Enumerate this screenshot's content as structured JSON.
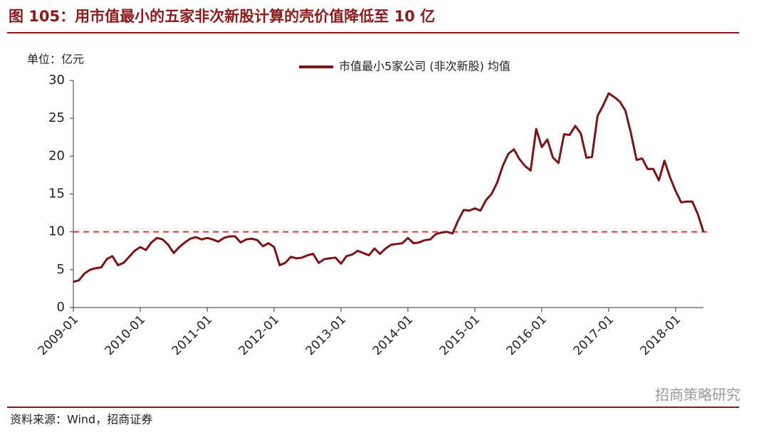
{
  "chart_data": {
    "type": "line",
    "title": "图 105：用市值最小的五家非次新股计算的壳价值降低至 10 亿",
    "y_unit_label": "单位：亿元",
    "source": "资料来源：Wind，招商证券",
    "watermark": "招商策略研究",
    "x": [
      "2009-01",
      "2009-02",
      "2009-03",
      "2009-04",
      "2009-05",
      "2009-06",
      "2009-07",
      "2009-08",
      "2009-09",
      "2009-10",
      "2009-11",
      "2009-12",
      "2010-01",
      "2010-02",
      "2010-03",
      "2010-04",
      "2010-05",
      "2010-06",
      "2010-07",
      "2010-08",
      "2010-09",
      "2010-10",
      "2010-11",
      "2010-12",
      "2011-01",
      "2011-02",
      "2011-03",
      "2011-04",
      "2011-05",
      "2011-06",
      "2011-07",
      "2011-08",
      "2011-09",
      "2011-10",
      "2011-11",
      "2011-12",
      "2012-01",
      "2012-02",
      "2012-03",
      "2012-04",
      "2012-05",
      "2012-06",
      "2012-07",
      "2012-08",
      "2012-09",
      "2012-10",
      "2012-11",
      "2012-12",
      "2013-01",
      "2013-02",
      "2013-03",
      "2013-04",
      "2013-05",
      "2013-06",
      "2013-07",
      "2013-08",
      "2013-09",
      "2013-10",
      "2013-11",
      "2013-12",
      "2014-01",
      "2014-02",
      "2014-03",
      "2014-04",
      "2014-05",
      "2014-06",
      "2014-07",
      "2014-08",
      "2014-09",
      "2014-10",
      "2014-11",
      "2014-12",
      "2015-01",
      "2015-02",
      "2015-03",
      "2015-04",
      "2015-05",
      "2015-06",
      "2015-07",
      "2015-08",
      "2015-09",
      "2015-10",
      "2015-11",
      "2015-12",
      "2016-01",
      "2016-02",
      "2016-03",
      "2016-04",
      "2016-05",
      "2016-06",
      "2016-07",
      "2016-08",
      "2016-09",
      "2016-10",
      "2016-11",
      "2016-12",
      "2017-01",
      "2017-02",
      "2017-03",
      "2017-04",
      "2017-05",
      "2017-06",
      "2017-07",
      "2017-08",
      "2017-09",
      "2017-10",
      "2017-11",
      "2017-12",
      "2018-01",
      "2018-02",
      "2018-03",
      "2018-04",
      "2018-05",
      "2018-06"
    ],
    "series": [
      {
        "name": "市值最小5家公司 (非次新股) 均值",
        "color": "#7b1414",
        "values": [
          3.4,
          3.6,
          4.5,
          5.0,
          5.2,
          5.3,
          6.4,
          6.8,
          5.6,
          5.9,
          6.7,
          7.5,
          8.0,
          7.6,
          8.6,
          9.2,
          9.0,
          8.3,
          7.2,
          8.0,
          8.6,
          9.1,
          9.3,
          9.0,
          9.2,
          9.0,
          8.7,
          9.2,
          9.4,
          9.4,
          8.6,
          9.0,
          9.1,
          8.9,
          8.1,
          8.5,
          8.0,
          5.6,
          5.9,
          6.7,
          6.5,
          6.6,
          6.9,
          7.1,
          5.9,
          6.4,
          6.5,
          6.6,
          5.8,
          6.8,
          7.0,
          7.5,
          7.2,
          6.9,
          7.8,
          7.1,
          7.8,
          8.3,
          8.4,
          8.5,
          9.2,
          8.5,
          8.6,
          8.9,
          9.0,
          9.7,
          9.9,
          10.0,
          9.8,
          11.5,
          12.9,
          12.8,
          13.1,
          12.8,
          14.2,
          15.0,
          16.5,
          18.7,
          20.3,
          20.9,
          19.6,
          18.7,
          18.1,
          23.6,
          21.2,
          22.2,
          19.8,
          19.1,
          22.9,
          22.8,
          24.0,
          23.0,
          19.8,
          19.9,
          25.3,
          26.7,
          28.3,
          27.8,
          27.2,
          26.0,
          23.0,
          19.5,
          19.7,
          18.3,
          18.3,
          16.8,
          19.4,
          17.2,
          15.4,
          13.9,
          14.0,
          14.0,
          12.3,
          10.0
        ]
      }
    ],
    "xticks": [
      "2009-01",
      "2010-01",
      "2011-01",
      "2012-01",
      "2013-01",
      "2014-01",
      "2015-01",
      "2016-01",
      "2017-01",
      "2018-01"
    ],
    "ylim": [
      0,
      30
    ],
    "yticks": [
      0,
      5,
      10,
      15,
      20,
      25,
      30
    ],
    "reference_line": {
      "value": 10,
      "color": "#e8312b"
    }
  }
}
